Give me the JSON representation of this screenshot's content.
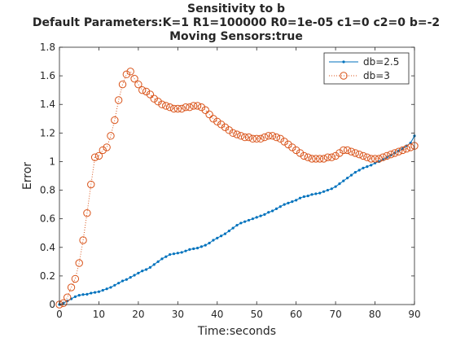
{
  "chart_data": {
    "type": "line",
    "title_lines": [
      "Sensitivity to b",
      "Default Parameters:K=1 R1=100000 R0=1e-05 c1=0 c2=0 b=-2",
      "Moving Sensors:true"
    ],
    "xlabel": "Time:seconds",
    "ylabel": "Error",
    "xlim": [
      0,
      90
    ],
    "ylim": [
      0,
      1.8
    ],
    "xticks": [
      0,
      10,
      20,
      30,
      40,
      50,
      60,
      70,
      80,
      90
    ],
    "yticks": [
      0,
      0.2,
      0.4,
      0.6,
      0.8,
      1,
      1.2,
      1.4,
      1.6,
      1.8
    ],
    "xtick_labels": [
      "0",
      "10",
      "20",
      "30",
      "40",
      "50",
      "60",
      "70",
      "80",
      "90"
    ],
    "ytick_labels": [
      "0",
      "0.2",
      "0.4",
      "0.6",
      "0.8",
      "1",
      "1.2",
      "1.4",
      "1.6",
      "1.8"
    ],
    "grid": false,
    "legend_position": "top-right",
    "series": [
      {
        "name": "db=2.5",
        "color": "#0072BD",
        "line_style": "solid",
        "marker": "dot",
        "x": [
          0,
          1,
          2,
          3,
          4,
          5,
          6,
          7,
          8,
          9,
          10,
          11,
          12,
          13,
          14,
          15,
          16,
          17,
          18,
          19,
          20,
          21,
          22,
          23,
          24,
          25,
          26,
          27,
          28,
          29,
          30,
          31,
          32,
          33,
          34,
          35,
          36,
          37,
          38,
          39,
          40,
          41,
          42,
          43,
          44,
          45,
          46,
          47,
          48,
          49,
          50,
          51,
          52,
          53,
          54,
          55,
          56,
          57,
          58,
          59,
          60,
          61,
          62,
          63,
          64,
          65,
          66,
          67,
          68,
          69,
          70,
          71,
          72,
          73,
          74,
          75,
          76,
          77,
          78,
          79,
          80,
          81,
          82,
          83,
          84,
          85,
          86,
          87,
          88,
          89,
          90
        ],
        "y": [
          0,
          0.01,
          0.025,
          0.04,
          0.055,
          0.065,
          0.07,
          0.072,
          0.08,
          0.085,
          0.09,
          0.1,
          0.11,
          0.12,
          0.135,
          0.15,
          0.165,
          0.175,
          0.19,
          0.205,
          0.22,
          0.235,
          0.245,
          0.26,
          0.28,
          0.3,
          0.32,
          0.335,
          0.35,
          0.355,
          0.36,
          0.365,
          0.375,
          0.385,
          0.39,
          0.395,
          0.405,
          0.415,
          0.43,
          0.45,
          0.465,
          0.48,
          0.495,
          0.515,
          0.535,
          0.555,
          0.57,
          0.58,
          0.59,
          0.6,
          0.61,
          0.62,
          0.63,
          0.645,
          0.655,
          0.67,
          0.685,
          0.7,
          0.71,
          0.72,
          0.73,
          0.745,
          0.755,
          0.76,
          0.77,
          0.775,
          0.78,
          0.79,
          0.8,
          0.81,
          0.825,
          0.845,
          0.865,
          0.885,
          0.905,
          0.925,
          0.94,
          0.955,
          0.965,
          0.975,
          0.99,
          1.0,
          1.015,
          1.03,
          1.045,
          1.06,
          1.075,
          1.09,
          1.11,
          1.13,
          1.18
        ]
      },
      {
        "name": "db=3",
        "color": "#D95319",
        "line_style": "dotted",
        "marker": "circle",
        "x": [
          0,
          1,
          2,
          3,
          4,
          5,
          6,
          7,
          8,
          9,
          10,
          11,
          12,
          13,
          14,
          15,
          16,
          17,
          18,
          19,
          20,
          21,
          22,
          23,
          24,
          25,
          26,
          27,
          28,
          29,
          30,
          31,
          32,
          33,
          34,
          35,
          36,
          37,
          38,
          39,
          40,
          41,
          42,
          43,
          44,
          45,
          46,
          47,
          48,
          49,
          50,
          51,
          52,
          53,
          54,
          55,
          56,
          57,
          58,
          59,
          60,
          61,
          62,
          63,
          64,
          65,
          66,
          67,
          68,
          69,
          70,
          71,
          72,
          73,
          74,
          75,
          76,
          77,
          78,
          79,
          80,
          81,
          82,
          83,
          84,
          85,
          86,
          87,
          88,
          89,
          90
        ],
        "y": [
          0,
          0.01,
          0.05,
          0.12,
          0.18,
          0.29,
          0.45,
          0.64,
          0.84,
          1.03,
          1.04,
          1.08,
          1.1,
          1.18,
          1.29,
          1.43,
          1.54,
          1.61,
          1.63,
          1.58,
          1.54,
          1.5,
          1.49,
          1.47,
          1.44,
          1.42,
          1.4,
          1.39,
          1.38,
          1.37,
          1.37,
          1.37,
          1.38,
          1.38,
          1.39,
          1.39,
          1.38,
          1.36,
          1.33,
          1.3,
          1.28,
          1.26,
          1.24,
          1.22,
          1.2,
          1.19,
          1.18,
          1.17,
          1.17,
          1.16,
          1.16,
          1.16,
          1.17,
          1.18,
          1.18,
          1.17,
          1.16,
          1.14,
          1.12,
          1.1,
          1.08,
          1.06,
          1.04,
          1.03,
          1.02,
          1.02,
          1.02,
          1.02,
          1.03,
          1.03,
          1.04,
          1.06,
          1.08,
          1.08,
          1.07,
          1.06,
          1.05,
          1.04,
          1.03,
          1.02,
          1.02,
          1.02,
          1.03,
          1.04,
          1.05,
          1.06,
          1.07,
          1.08,
          1.09,
          1.1,
          1.11
        ]
      }
    ]
  }
}
